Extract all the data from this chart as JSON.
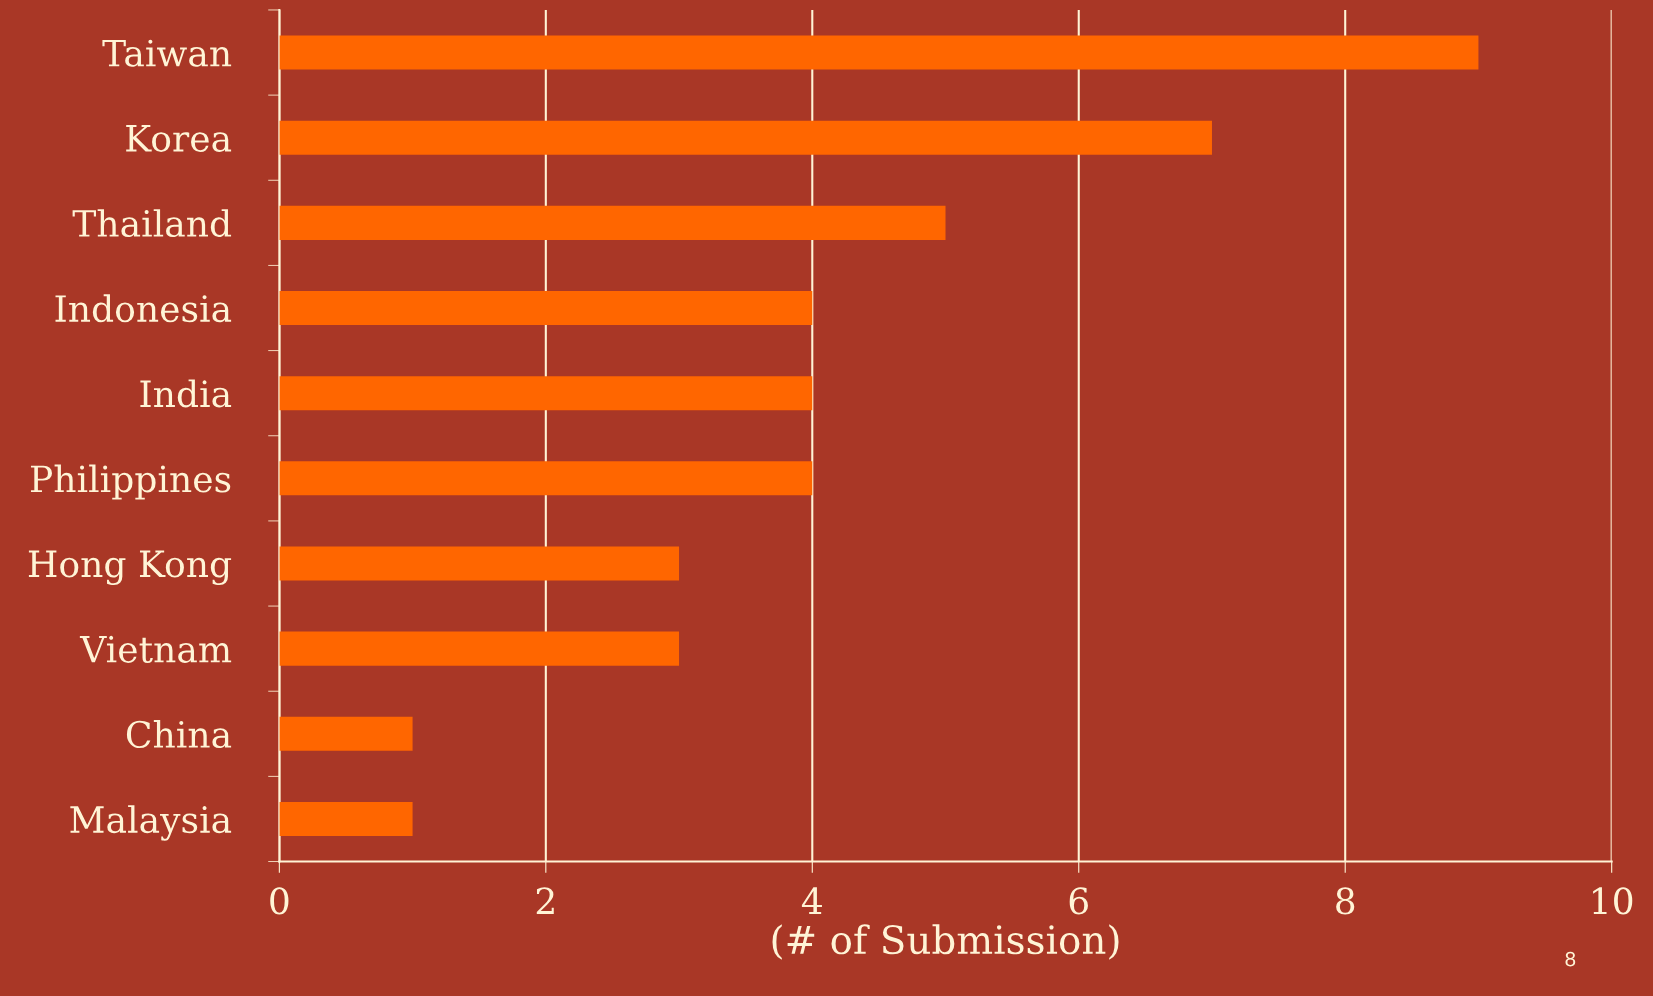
{
  "chart_data": {
    "type": "bar",
    "orientation": "horizontal",
    "categories": [
      "Taiwan",
      "Korea",
      "Thailand",
      "Indonesia",
      "India",
      "Philippines",
      "Hong Kong",
      "Vietnam",
      "China",
      "Malaysia"
    ],
    "values": [
      9,
      7,
      5,
      4,
      4,
      4,
      3,
      3,
      1,
      1
    ],
    "color": "#ff6600",
    "xlabel": "(# of Submission)",
    "xlim": [
      0,
      10
    ],
    "xticks": [
      0,
      2,
      4,
      6,
      8,
      10
    ],
    "grid": "x",
    "annotations": [
      "8"
    ]
  }
}
